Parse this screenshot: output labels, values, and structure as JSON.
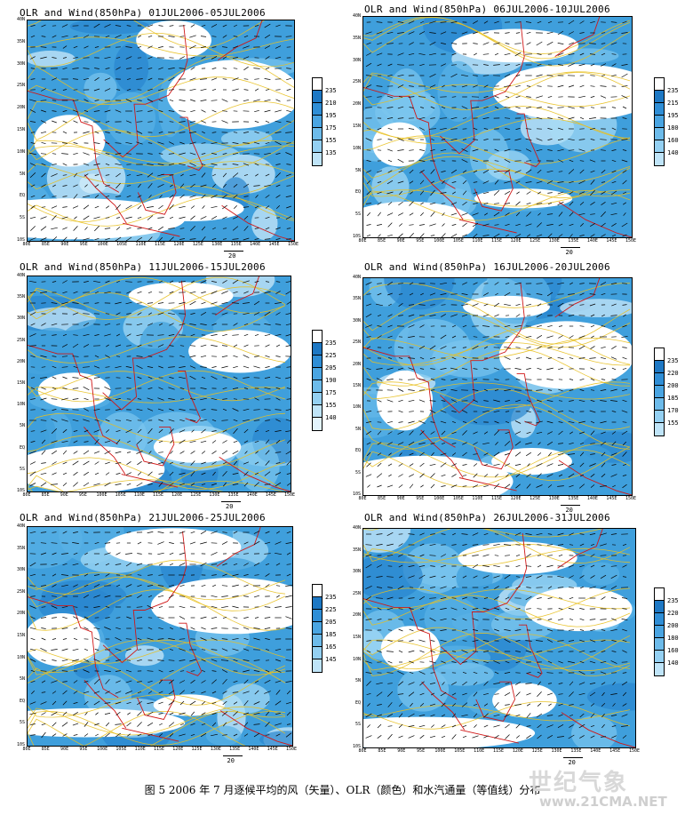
{
  "caption": "图 5 2006 年 7 月逐候平均的风（矢量）、OLR（颜色）和水汽通量（等值线）分布",
  "watermark": {
    "text": "世纪气象",
    "url": "www.21CMA.NET"
  },
  "colors": {
    "ocean_blue": "#3f9fdc",
    "contour": "#e8c020",
    "coast": "#d01818",
    "vector": "#000000"
  },
  "chart_data": [
    {
      "type": "heatmap",
      "title": "OLR and Wind(850hPa) 01JUL2006-05JUL2006",
      "xticks": [
        "80E",
        "85E",
        "90E",
        "95E",
        "100E",
        "105E",
        "110E",
        "115E",
        "120E",
        "125E",
        "130E",
        "135E",
        "140E",
        "145E",
        "150E"
      ],
      "yticks": [
        "40N",
        "35N",
        "30N",
        "25N",
        "20N",
        "15N",
        "10N",
        "5N",
        "EQ",
        "5S",
        "10S"
      ],
      "xlim": [
        80,
        150
      ],
      "ylim": [
        -10,
        40
      ],
      "reference_vector": "20",
      "colorbar": [
        235,
        210,
        195,
        175,
        155,
        135
      ]
    },
    {
      "type": "heatmap",
      "title": "OLR and Wind(850hPa) 06JUL2006-10JUL2006",
      "xticks": [
        "80E",
        "85E",
        "90E",
        "95E",
        "100E",
        "105E",
        "110E",
        "115E",
        "120E",
        "125E",
        "130E",
        "135E",
        "140E",
        "145E",
        "150E"
      ],
      "yticks": [
        "40N",
        "35N",
        "30N",
        "25N",
        "20N",
        "15N",
        "10N",
        "5N",
        "EQ",
        "5S",
        "10S"
      ],
      "xlim": [
        80,
        150
      ],
      "ylim": [
        -10,
        40
      ],
      "reference_vector": "20",
      "colorbar": [
        235,
        215,
        195,
        180,
        160,
        140
      ]
    },
    {
      "type": "heatmap",
      "title": "OLR and Wind(850hPa) 11JUL2006-15JUL2006",
      "xticks": [
        "80E",
        "85E",
        "90E",
        "95E",
        "100E",
        "105E",
        "110E",
        "115E",
        "120E",
        "125E",
        "130E",
        "135E",
        "140E",
        "145E",
        "150E"
      ],
      "yticks": [
        "40N",
        "35N",
        "30N",
        "25N",
        "20N",
        "15N",
        "10N",
        "5N",
        "EQ",
        "5S",
        "10S"
      ],
      "xlim": [
        80,
        150
      ],
      "ylim": [
        -10,
        40
      ],
      "reference_vector": "20",
      "colorbar": [
        235,
        225,
        205,
        190,
        175,
        155,
        140
      ]
    },
    {
      "type": "heatmap",
      "title": "OLR and Wind(850hPa) 16JUL2006-20JUL2006",
      "xticks": [
        "80E",
        "85E",
        "90E",
        "95E",
        "100E",
        "105E",
        "110E",
        "115E",
        "120E",
        "125E",
        "130E",
        "135E",
        "140E",
        "145E",
        "150E"
      ],
      "yticks": [
        "40N",
        "35N",
        "30N",
        "25N",
        "20N",
        "15N",
        "10N",
        "5N",
        "EQ",
        "5S",
        "10S"
      ],
      "xlim": [
        80,
        150
      ],
      "ylim": [
        -10,
        40
      ],
      "reference_vector": "20",
      "colorbar": [
        235,
        220,
        200,
        185,
        170,
        155
      ]
    },
    {
      "type": "heatmap",
      "title": "OLR and Wind(850hPa) 21JUL2006-25JUL2006",
      "xticks": [
        "80E",
        "85E",
        "90E",
        "95E",
        "100E",
        "105E",
        "110E",
        "115E",
        "120E",
        "125E",
        "130E",
        "135E",
        "140E",
        "145E",
        "150E"
      ],
      "yticks": [
        "40N",
        "35N",
        "30N",
        "25N",
        "20N",
        "15N",
        "10N",
        "5N",
        "EQ",
        "5S",
        "10S"
      ],
      "xlim": [
        80,
        150
      ],
      "ylim": [
        -10,
        40
      ],
      "reference_vector": "20",
      "colorbar": [
        235,
        225,
        205,
        185,
        165,
        145
      ]
    },
    {
      "type": "heatmap",
      "title": "OLR and Wind(850hPa) 26JUL2006-31JUL2006",
      "xticks": [
        "80E",
        "85E",
        "90E",
        "95E",
        "100E",
        "105E",
        "110E",
        "115E",
        "120E",
        "125E",
        "130E",
        "135E",
        "140E",
        "145E",
        "150E"
      ],
      "yticks": [
        "40N",
        "35N",
        "30N",
        "25N",
        "20N",
        "15N",
        "10N",
        "5N",
        "EQ",
        "5S",
        "10S"
      ],
      "xlim": [
        80,
        150
      ],
      "ylim": [
        -10,
        40
      ],
      "reference_vector": "20",
      "colorbar": [
        235,
        220,
        200,
        180,
        160,
        140
      ]
    }
  ]
}
